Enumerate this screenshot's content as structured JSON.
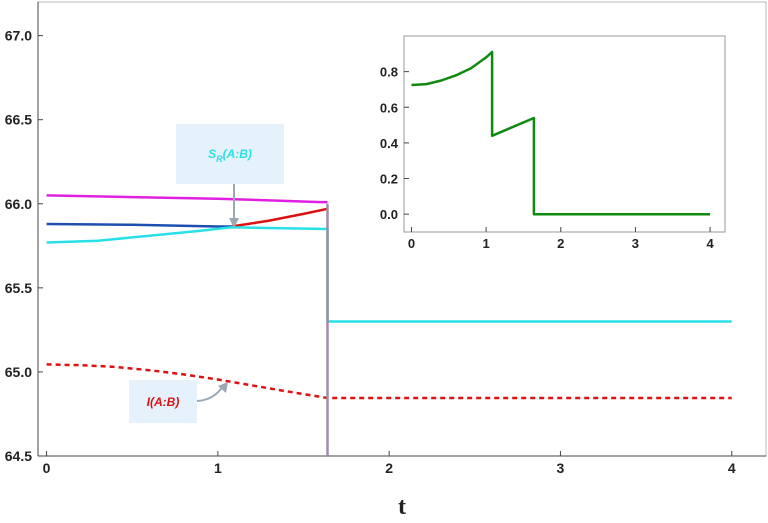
{
  "chart_data": [
    {
      "type": "line",
      "title": "",
      "xlabel": "t",
      "ylabel": "",
      "xlim": [
        -0.05,
        4.2
      ],
      "ylim": [
        64.5,
        67.2
      ],
      "xticks": [
        "0",
        "1",
        "2",
        "3",
        "4"
      ],
      "yticks": [
        "64.5",
        "65.0",
        "65.5",
        "66.0",
        "66.5",
        "67.0"
      ],
      "grid": false,
      "series": [
        {
          "color": "#e020e0",
          "style": "solid",
          "x": [
            0,
            0.5,
            1.0,
            1.3,
            1.6,
            1.64
          ],
          "y": [
            66.05,
            66.04,
            66.03,
            66.02,
            66.01,
            66.01
          ]
        },
        {
          "color": "#1c4fb0",
          "style": "solid",
          "x": [
            0,
            0.5,
            1.0,
            1.08
          ],
          "y": [
            65.88,
            65.875,
            65.865,
            65.865
          ]
        },
        {
          "color": "#dd1111",
          "style": "solid",
          "x": [
            1.08,
            1.3,
            1.5,
            1.64
          ],
          "y": [
            65.865,
            65.9,
            65.94,
            65.97
          ]
        },
        {
          "color": "#28e0e8",
          "style": "solid",
          "x": [
            0,
            0.3,
            0.6,
            0.9,
            1.08,
            1.64,
            1.64,
            4.0
          ],
          "y": [
            65.77,
            65.78,
            65.81,
            65.84,
            65.86,
            65.85,
            65.3,
            65.3
          ]
        },
        {
          "color": "#dd1111",
          "style": "dashed",
          "x": [
            0,
            0.2,
            0.4,
            0.6,
            0.8,
            1.0,
            1.2,
            1.4,
            1.64,
            4.0
          ],
          "y": [
            65.045,
            65.04,
            65.03,
            65.01,
            64.985,
            64.955,
            64.92,
            64.885,
            64.845,
            64.845
          ]
        },
        {
          "color": "#a08ca8",
          "style": "solid",
          "x": [
            1.64,
            1.64
          ],
          "y": [
            66.0,
            64.5
          ]
        }
      ],
      "annotations": [
        {
          "text_main": "S",
          "text_sub": "R",
          "text_rest": "(A:B)",
          "color": "#28e0e8",
          "x": 1.08,
          "y": 65.865
        },
        {
          "text": "I(A:B)",
          "color": "#dd1111",
          "x": 1.05,
          "y": 64.95
        }
      ]
    },
    {
      "type": "line",
      "title": "",
      "xlabel": "",
      "ylabel": "",
      "xlim": [
        -0.1,
        4.2
      ],
      "ylim": [
        -0.1,
        1.0
      ],
      "xticks": [
        "0",
        "1",
        "2",
        "3",
        "4"
      ],
      "yticks": [
        "0.0",
        "0.2",
        "0.4",
        "0.6",
        "0.8"
      ],
      "grid": false,
      "series": [
        {
          "color": "#0e8a0e",
          "style": "solid",
          "x": [
            0,
            0.2,
            0.4,
            0.6,
            0.8,
            1.0,
            1.08,
            1.08,
            1.64,
            1.64,
            4.0
          ],
          "y": [
            0.725,
            0.73,
            0.75,
            0.78,
            0.82,
            0.88,
            0.91,
            0.44,
            0.54,
            0.0,
            0.0
          ]
        }
      ]
    }
  ]
}
